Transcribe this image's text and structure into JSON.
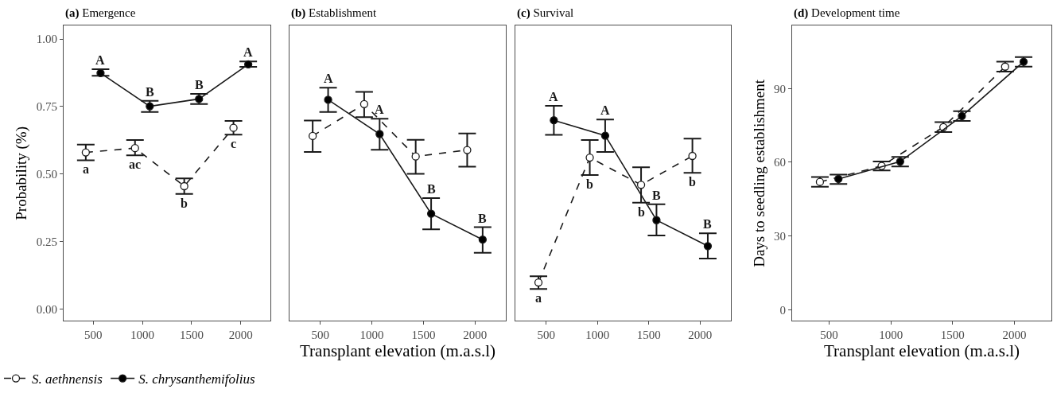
{
  "chart_data": [
    {
      "type": "line",
      "title": "(a) Emergence",
      "ylabel": "Probability (%)",
      "xlim": [
        200,
        2300
      ],
      "xticks": [
        500,
        1000,
        1500,
        2000
      ],
      "ylim": [
        -0.044,
        1.049
      ],
      "yticks": [
        {
          "value": 0,
          "label": "0.00"
        },
        {
          "value": 0.25,
          "label": "0.25"
        },
        {
          "value": 0.5,
          "label": "0.50"
        },
        {
          "value": 0.75,
          "label": "0.75"
        },
        {
          "value": 1,
          "label": "1.00"
        }
      ],
      "legend": "bottom left",
      "marker": "circle",
      "series": [
        {
          "name": "S. aethnensis",
          "color": "#ffffff",
          "line_style": "dashed",
          "x": [
            425,
            925,
            1425,
            1925
          ],
          "values": [
            0.58,
            0.596,
            0.455,
            0.671
          ],
          "errors": [
            [
              0.551,
              0.609
            ],
            [
              0.569,
              0.626
            ],
            [
              0.426,
              0.484
            ],
            [
              0.646,
              0.697
            ]
          ],
          "value_labels": [
            "a",
            "ac",
            "b",
            "c"
          ]
        },
        {
          "name": "S. chrysanthemifolius",
          "color": "#000000",
          "line_style": "solid",
          "x": [
            575,
            1075,
            1575,
            2075
          ],
          "values": [
            0.874,
            0.751,
            0.778,
            0.906
          ],
          "errors": [
            [
              0.864,
              0.888
            ],
            [
              0.73,
              0.771
            ],
            [
              0.759,
              0.797
            ],
            [
              0.897,
              0.917
            ]
          ],
          "value_labels": [
            "A",
            "B",
            "B",
            "A"
          ]
        }
      ]
    },
    {
      "type": "line",
      "title": "(b) Establishment",
      "xlabel": "Transplant elevation (m.a.s.l)",
      "xlim": [
        200,
        2300
      ],
      "xticks": [
        500,
        1000,
        1500,
        2000
      ],
      "ylim": [
        -0.044,
        1.049
      ],
      "tick_labels": "x",
      "marker": "circle",
      "series": [
        {
          "color": "#ffffff",
          "line_style": "dashed",
          "x": [
            425,
            925,
            1425,
            1925
          ],
          "values": [
            0.641,
            0.759,
            0.565,
            0.589
          ],
          "errors": [
            [
              0.582,
              0.698
            ],
            [
              0.711,
              0.804
            ],
            [
              0.501,
              0.627
            ],
            [
              0.527,
              0.65
            ]
          ]
        },
        {
          "color": "#000000",
          "line_style": "solid",
          "x": [
            575,
            1075,
            1575,
            2075
          ],
          "values": [
            0.775,
            0.648,
            0.353,
            0.257
          ],
          "errors": [
            [
              0.73,
              0.82
            ],
            [
              0.59,
              0.705
            ],
            [
              0.295,
              0.411
            ],
            [
              0.208,
              0.303
            ]
          ],
          "value_labels": [
            "A",
            "A",
            "B",
            "B"
          ]
        }
      ]
    },
    {
      "type": "line",
      "title": "(c) Survival",
      "xlim": [
        200,
        2300
      ],
      "xticks": [
        500,
        1000,
        1500,
        2000
      ],
      "ylim": [
        -0.044,
        1.049
      ],
      "tick_labels": "x",
      "marker": "circle",
      "series": [
        {
          "color": "#ffffff",
          "line_style": "dashed",
          "x": [
            425,
            925,
            1425,
            1925
          ],
          "values": [
            0.098,
            0.561,
            0.46,
            0.567
          ],
          "errors": [
            [
              0.074,
              0.121
            ],
            [
              0.496,
              0.626
            ],
            [
              0.394,
              0.525
            ],
            [
              0.504,
              0.631
            ]
          ],
          "value_labels": [
            "a",
            "b",
            "b",
            "b"
          ]
        },
        {
          "color": "#000000",
          "line_style": "solid",
          "x": [
            575,
            1075,
            1575,
            2075
          ],
          "values": [
            0.699,
            0.642,
            0.329,
            0.233
          ],
          "errors": [
            [
              0.645,
              0.753
            ],
            [
              0.582,
              0.702
            ],
            [
              0.272,
              0.388
            ],
            [
              0.187,
              0.28
            ]
          ],
          "value_labels": [
            "A",
            "A",
            "B",
            "B"
          ]
        }
      ]
    },
    {
      "type": "line",
      "title": "(d) Development time",
      "xlabel": "Transplant elevation (m.a.s.l)",
      "ylabel": "Days to seedling establishment",
      "xlim": [
        200,
        2300
      ],
      "xticks": [
        500,
        1000,
        1500,
        2000
      ],
      "ylim": [
        -4.5,
        115.5
      ],
      "yticks": [
        0,
        30,
        60,
        90
      ],
      "marker": "circle",
      "series": [
        {
          "color": "#ffffff",
          "line_style": "dashed",
          "x": [
            425,
            925,
            1425,
            1925
          ],
          "values": [
            52.0,
            58.5,
            74.3,
            98.9
          ],
          "errors": [
            [
              50.0,
              54.0
            ],
            [
              56.7,
              60.3
            ],
            [
              72.3,
              76.3
            ],
            [
              96.9,
              100.9
            ]
          ]
        },
        {
          "color": "#000000",
          "line_style": "solid",
          "x": [
            575,
            1075,
            1575,
            2075
          ],
          "values": [
            53.2,
            60.3,
            78.8,
            100.9
          ],
          "errors": [
            [
              51.2,
              55.0
            ],
            [
              58.3,
              62.2
            ],
            [
              76.8,
              80.8
            ],
            [
              98.9,
              102.8
            ]
          ]
        }
      ]
    }
  ]
}
